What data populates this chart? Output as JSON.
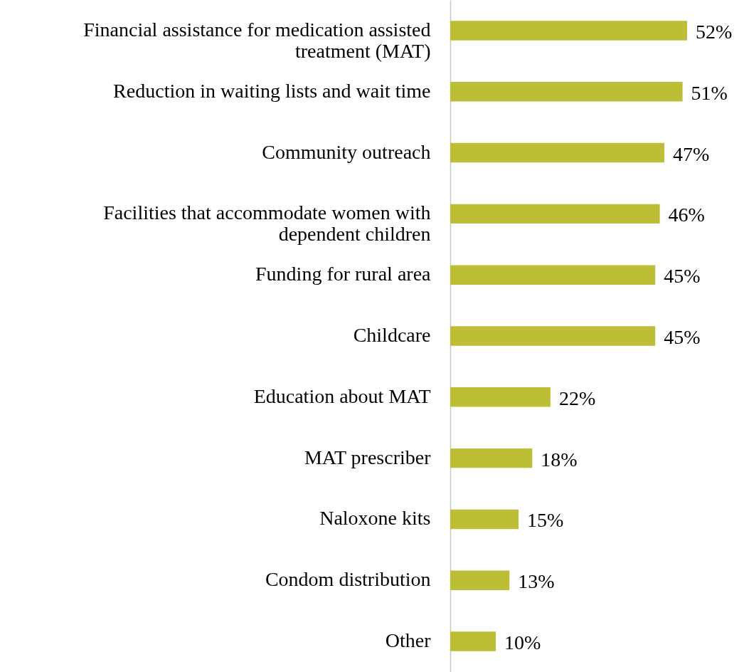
{
  "chart_data": {
    "type": "bar",
    "orientation": "horizontal",
    "categories": [
      "Financial assistance for medication assisted treatment (MAT)",
      "Reduction in waiting lists and wait time",
      "Community outreach",
      "Facilities that accommodate women with dependent children",
      "Funding for rural area",
      "Childcare",
      "Education about MAT",
      "MAT prescriber",
      "Naloxone kits",
      "Condom distribution",
      "Other"
    ],
    "values": [
      52,
      51,
      47,
      46,
      45,
      45,
      22,
      18,
      15,
      13,
      10
    ],
    "value_labels": [
      "52%",
      "51%",
      "47%",
      "46%",
      "45%",
      "45%",
      "22%",
      "18%",
      "15%",
      "13%",
      "10%"
    ],
    "color": "#bcbf35",
    "grid": false
  }
}
